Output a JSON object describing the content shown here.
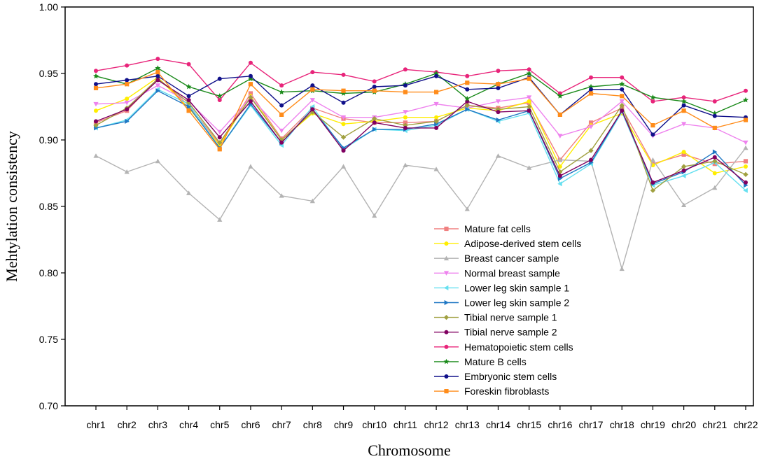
{
  "chart_data": {
    "type": "line",
    "title": "",
    "xlabel": "Chromosome",
    "ylabel": "Mehtylation consistency",
    "ylim": [
      0.7,
      1.0
    ],
    "yticks": [
      "0.70",
      "0.75",
      "0.80",
      "0.85",
      "0.90",
      "0.95",
      "1.00"
    ],
    "grid": false,
    "legend_position": "bottom-right",
    "categories": [
      "chr1",
      "chr2",
      "chr3",
      "chr4",
      "chr5",
      "chr6",
      "chr7",
      "chr8",
      "chr9",
      "chr10",
      "chr11",
      "chr12",
      "chr13",
      "chr14",
      "chr15",
      "chr16",
      "chr17",
      "chr18",
      "chr19",
      "chr20",
      "chr21",
      "chr22"
    ],
    "series": [
      {
        "name": "Mature fat cells",
        "color": "#f08080",
        "marker": "square",
        "values": [
          0.913,
          0.922,
          0.946,
          0.926,
          0.897,
          0.935,
          0.901,
          0.924,
          0.916,
          0.913,
          0.913,
          0.914,
          0.926,
          0.924,
          0.928,
          0.885,
          0.913,
          0.924,
          0.882,
          0.889,
          0.882,
          0.884
        ]
      },
      {
        "name": "Adipose-derived stem cells",
        "color": "#ffee00",
        "marker": "circle",
        "values": [
          0.922,
          0.931,
          0.947,
          0.924,
          0.896,
          0.933,
          0.9,
          0.92,
          0.912,
          0.914,
          0.917,
          0.917,
          0.924,
          0.922,
          0.929,
          0.88,
          0.911,
          0.92,
          0.881,
          0.891,
          0.875,
          0.88
        ]
      },
      {
        "name": "Breast cancer sample",
        "color": "#b3b3b3",
        "marker": "triangle-up",
        "values": [
          0.888,
          0.876,
          0.884,
          0.86,
          0.84,
          0.88,
          0.858,
          0.854,
          0.88,
          0.843,
          0.881,
          0.878,
          0.848,
          0.888,
          0.879,
          0.885,
          0.884,
          0.803,
          0.885,
          0.851,
          0.864,
          0.894
        ]
      },
      {
        "name": "Normal breast sample",
        "color": "#ee82ee",
        "marker": "triangle-down",
        "values": [
          0.927,
          0.928,
          0.941,
          0.929,
          0.906,
          0.932,
          0.907,
          0.93,
          0.917,
          0.917,
          0.921,
          0.927,
          0.924,
          0.929,
          0.932,
          0.903,
          0.91,
          0.929,
          0.903,
          0.912,
          0.909,
          0.898
        ]
      },
      {
        "name": "Lower leg skin sample 1",
        "color": "#66e0f0",
        "marker": "triangle-left",
        "values": [
          0.909,
          0.915,
          0.938,
          0.927,
          0.894,
          0.926,
          0.896,
          0.925,
          0.893,
          0.908,
          0.907,
          0.911,
          0.923,
          0.914,
          0.92,
          0.867,
          0.882,
          0.921,
          0.866,
          0.873,
          0.883,
          0.862
        ]
      },
      {
        "name": "Lower leg skin sample 2",
        "color": "#1f77c4",
        "marker": "triangle-right",
        "values": [
          0.909,
          0.914,
          0.937,
          0.925,
          0.894,
          0.927,
          0.898,
          0.923,
          0.894,
          0.908,
          0.908,
          0.912,
          0.923,
          0.915,
          0.922,
          0.871,
          0.883,
          0.922,
          0.867,
          0.876,
          0.891,
          0.866
        ]
      },
      {
        "name": "Tibial nerve sample 1",
        "color": "#a0a040",
        "marker": "diamond",
        "values": [
          0.911,
          0.924,
          0.946,
          0.928,
          0.898,
          0.932,
          0.9,
          0.921,
          0.902,
          0.916,
          0.911,
          0.914,
          0.926,
          0.923,
          0.925,
          0.876,
          0.892,
          0.926,
          0.862,
          0.88,
          0.884,
          0.874
        ]
      },
      {
        "name": "Tibial nerve sample 2",
        "color": "#800060",
        "marker": "circle",
        "values": [
          0.914,
          0.923,
          0.945,
          0.93,
          0.902,
          0.929,
          0.898,
          0.923,
          0.892,
          0.913,
          0.909,
          0.909,
          0.929,
          0.921,
          0.922,
          0.873,
          0.885,
          0.922,
          0.868,
          0.877,
          0.887,
          0.868
        ]
      },
      {
        "name": "Hematopoietic stem cells",
        "color": "#e8247a",
        "marker": "circle",
        "values": [
          0.952,
          0.956,
          0.961,
          0.957,
          0.93,
          0.958,
          0.941,
          0.951,
          0.949,
          0.944,
          0.953,
          0.951,
          0.948,
          0.952,
          0.953,
          0.935,
          0.947,
          0.947,
          0.929,
          0.932,
          0.929,
          0.937
        ]
      },
      {
        "name": "Mature B cells",
        "color": "#1a8a1a",
        "marker": "star",
        "values": [
          0.948,
          0.942,
          0.954,
          0.94,
          0.933,
          0.946,
          0.936,
          0.937,
          0.935,
          0.936,
          0.942,
          0.95,
          0.931,
          0.942,
          0.95,
          0.933,
          0.94,
          0.942,
          0.932,
          0.929,
          0.92,
          0.93
        ]
      },
      {
        "name": "Embryonic stem cells",
        "color": "#10108a",
        "marker": "circle",
        "values": [
          0.942,
          0.945,
          0.948,
          0.933,
          0.946,
          0.948,
          0.926,
          0.941,
          0.928,
          0.94,
          0.941,
          0.948,
          0.938,
          0.939,
          0.947,
          0.919,
          0.938,
          0.938,
          0.904,
          0.926,
          0.918,
          0.917
        ]
      },
      {
        "name": "Foreskin fibroblasts",
        "color": "#ff8c1a",
        "marker": "square",
        "values": [
          0.939,
          0.942,
          0.951,
          0.922,
          0.893,
          0.942,
          0.919,
          0.938,
          0.937,
          0.937,
          0.936,
          0.936,
          0.943,
          0.942,
          0.946,
          0.919,
          0.935,
          0.933,
          0.911,
          0.922,
          0.909,
          0.915
        ]
      }
    ]
  }
}
